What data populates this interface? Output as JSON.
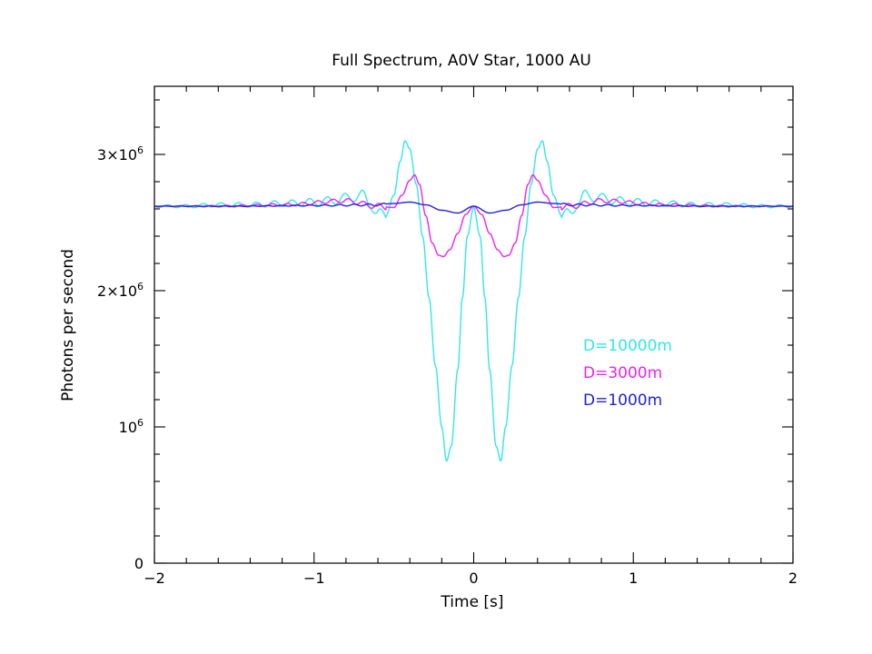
{
  "chart_data": {
    "type": "line",
    "title": "Full Spectrum, A0V Star, 1000 AU",
    "xlabel": "Time [s]",
    "ylabel": "Photons per second",
    "xlim": [
      -2,
      2
    ],
    "ylim": [
      0,
      3500000
    ],
    "x_ticks": [
      {
        "value": -2,
        "label": "−2"
      },
      {
        "value": -1,
        "label": "−1"
      },
      {
        "value": 0,
        "label": "0"
      },
      {
        "value": 1,
        "label": "1"
      },
      {
        "value": 2,
        "label": "2"
      }
    ],
    "x_minor_step": 0.2,
    "y_ticks": [
      {
        "value": 0,
        "label": "0"
      },
      {
        "value": 1000000,
        "label": "10",
        "sup": "6"
      },
      {
        "value": 2000000,
        "label": "2×10",
        "sup": "6"
      },
      {
        "value": 3000000,
        "label": "3×10",
        "sup": "6"
      }
    ],
    "y_minor_step": 200000,
    "baseline": 2620000,
    "legend_position": "center-right",
    "series": [
      {
        "name": "D=10000m",
        "color": "#33e6e6",
        "x": [
          -2.0,
          -1.8,
          -1.6,
          -1.4,
          -1.2,
          -1.0,
          -0.9,
          -0.8,
          -0.7,
          -0.65,
          -0.6,
          -0.55,
          -0.5,
          -0.46,
          -0.43,
          -0.4,
          -0.36,
          -0.32,
          -0.28,
          -0.24,
          -0.2,
          -0.17,
          -0.14,
          -0.1,
          -0.07,
          -0.04,
          0.0,
          0.04,
          0.07,
          0.1,
          0.14,
          0.17,
          0.2,
          0.24,
          0.28,
          0.32,
          0.36,
          0.4,
          0.43,
          0.46,
          0.5,
          0.55,
          0.6,
          0.65,
          0.7,
          0.8,
          0.9,
          1.0,
          1.2,
          1.4,
          1.6,
          1.8,
          2.0
        ],
        "y": [
          2620000,
          2620000,
          2630000,
          2630000,
          2640000,
          2650000,
          2660000,
          2680000,
          2700000,
          2640000,
          2560000,
          2550000,
          2700000,
          2950000,
          3100000,
          3040000,
          2780000,
          2400000,
          1950000,
          1450000,
          1000000,
          750000,
          860000,
          1420000,
          1950000,
          2400000,
          2610000,
          2400000,
          1950000,
          1420000,
          860000,
          750000,
          1000000,
          1450000,
          1950000,
          2400000,
          2780000,
          3040000,
          3100000,
          2950000,
          2700000,
          2550000,
          2560000,
          2640000,
          2700000,
          2680000,
          2660000,
          2650000,
          2640000,
          2630000,
          2630000,
          2620000,
          2620000
        ]
      },
      {
        "name": "D=3000m",
        "color": "#ee22ee",
        "x": [
          -2.0,
          -1.6,
          -1.2,
          -0.8,
          -0.6,
          -0.5,
          -0.45,
          -0.4,
          -0.37,
          -0.34,
          -0.3,
          -0.26,
          -0.22,
          -0.19,
          -0.15,
          -0.1,
          -0.05,
          0.0,
          0.05,
          0.1,
          0.15,
          0.19,
          0.22,
          0.26,
          0.3,
          0.34,
          0.37,
          0.4,
          0.45,
          0.5,
          0.6,
          0.8,
          1.2,
          1.6,
          2.0
        ],
        "y": [
          2620000,
          2620000,
          2630000,
          2660000,
          2620000,
          2610000,
          2700000,
          2810000,
          2850000,
          2780000,
          2550000,
          2350000,
          2260000,
          2250000,
          2300000,
          2420000,
          2560000,
          2620000,
          2560000,
          2420000,
          2300000,
          2250000,
          2260000,
          2350000,
          2550000,
          2780000,
          2850000,
          2810000,
          2700000,
          2610000,
          2620000,
          2660000,
          2630000,
          2620000,
          2620000
        ]
      },
      {
        "name": "D=1000m",
        "color": "#2222dd",
        "x": [
          -2.0,
          -1.5,
          -1.0,
          -0.6,
          -0.5,
          -0.4,
          -0.3,
          -0.2,
          -0.1,
          0.0,
          0.1,
          0.2,
          0.3,
          0.4,
          0.5,
          0.6,
          1.0,
          1.5,
          2.0
        ],
        "y": [
          2620000,
          2620000,
          2625000,
          2630000,
          2640000,
          2650000,
          2630000,
          2590000,
          2570000,
          2620000,
          2570000,
          2590000,
          2630000,
          2650000,
          2640000,
          2630000,
          2625000,
          2620000,
          2620000
        ]
      }
    ]
  }
}
